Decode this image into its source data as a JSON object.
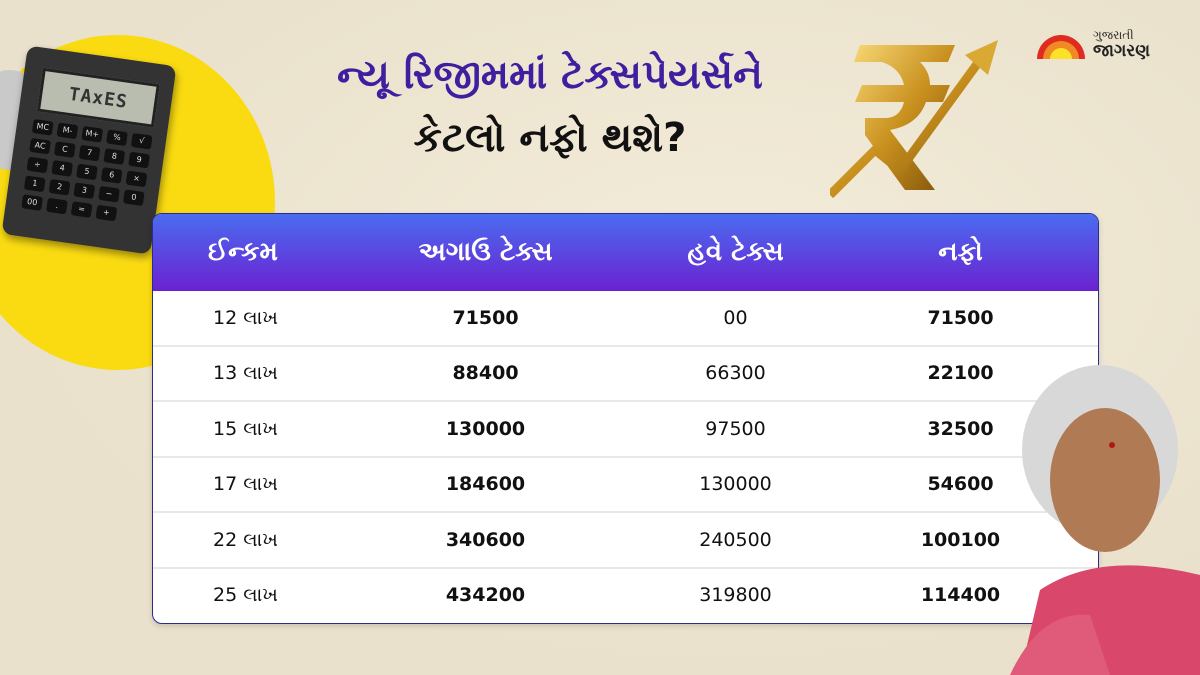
{
  "title": {
    "line1": "ન્યૂ રિજીમમાં ટેક્સપેયર્સને",
    "line2": "કેટલો નફો થશે?"
  },
  "logo": {
    "line1": "ગુજરાતી",
    "line2": "જાગરણ"
  },
  "calculator": {
    "screen": "TAxES",
    "keys": [
      "MC",
      "M-",
      "M+",
      "%",
      "√",
      "AC",
      "C",
      "7",
      "8",
      "9",
      "÷",
      "4",
      "5",
      "6",
      "×",
      "1",
      "2",
      "3",
      "−",
      "0",
      "00",
      ".",
      "=",
      "+"
    ]
  },
  "table": {
    "headers": [
      "ઈન્કમ",
      "અગાઉ ટેક્સ",
      "હવે ટેક્સ",
      "નફો"
    ],
    "rows": [
      {
        "income": "12 લાખ",
        "old_tax": "71500",
        "new_tax": "00",
        "benefit": "71500"
      },
      {
        "income": "13 લાખ",
        "old_tax": "88400",
        "new_tax": "66300",
        "benefit": "22100"
      },
      {
        "income": "15 લાખ",
        "old_tax": "130000",
        "new_tax": "97500",
        "benefit": "32500"
      },
      {
        "income": "17 લાખ",
        "old_tax": "184600",
        "new_tax": "130000",
        "benefit": "54600"
      },
      {
        "income": "22 લાખ",
        "old_tax": "340600",
        "new_tax": "240500",
        "benefit": "100100"
      },
      {
        "income": "25 લાખ",
        "old_tax": "434200",
        "new_tax": "319800",
        "benefit": "114400"
      }
    ]
  },
  "colors": {
    "title": "#3f1ea0",
    "header_top": "#4a6cf0",
    "header_bottom": "#6a22d0",
    "accent_yellow": "#fadb12"
  }
}
